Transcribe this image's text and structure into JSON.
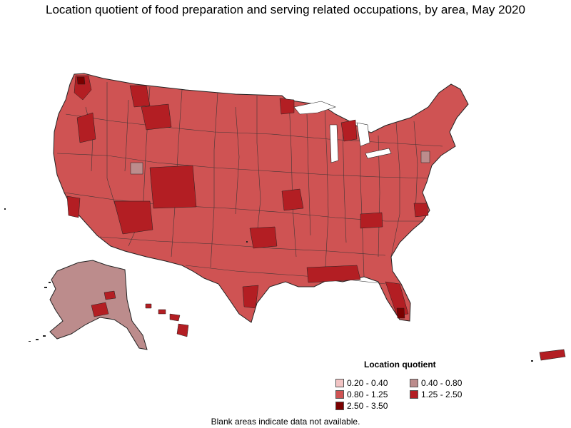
{
  "title": "Location quotient of food preparation and serving related occupations, by area, May 2020",
  "legend": {
    "title": "Location quotient",
    "items": [
      {
        "label": "0.20 - 0.40",
        "color": "#f2c4c4"
      },
      {
        "label": "0.40 - 0.80",
        "color": "#bc8c8c"
      },
      {
        "label": "0.80 - 1.25",
        "color": "#cf5353"
      },
      {
        "label": "1.25 - 2.50",
        "color": "#b31e23"
      },
      {
        "label": "2.50 - 3.50",
        "color": "#7a0000"
      }
    ]
  },
  "note": "Blank areas indicate data not available."
}
